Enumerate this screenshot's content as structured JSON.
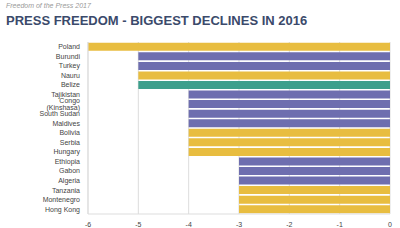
{
  "chart_data": {
    "type": "bar",
    "orientation": "horizontal",
    "title": "PRESS FREEDOM - BIGGEST DECLINES IN 2016",
    "subtitle": "Freedom of the Press 2017",
    "categories": [
      "Poland",
      "Burundi",
      "Turkey",
      "Nauru",
      "Belize",
      "Tajikistan",
      "Congo (Kinshasa)",
      "South Sudan",
      "Maldives",
      "Bolivia",
      "Serbia",
      "Hungary",
      "Ethiopia",
      "Gabon",
      "Algeria",
      "Tanzania",
      "Montenegro",
      "Hong Kong"
    ],
    "values": [
      -6,
      -5,
      -5,
      -5,
      -5,
      -4,
      -4,
      -4,
      -4,
      -4,
      -4,
      -4,
      -3,
      -3,
      -3,
      -3,
      -3,
      -3
    ],
    "colors": [
      "#e8bd40",
      "#6e6eaf",
      "#6e6eaf",
      "#e8bd40",
      "#3d9f8c",
      "#6e6eaf",
      "#6e6eaf",
      "#6e6eaf",
      "#6e6eaf",
      "#e8bd40",
      "#e8bd40",
      "#e8bd40",
      "#6e6eaf",
      "#6e6eaf",
      "#6e6eaf",
      "#e8bd40",
      "#e8bd40",
      "#e8bd40"
    ],
    "xlim": [
      -6,
      0
    ],
    "xticks": [
      -6,
      -5,
      -4,
      -3,
      -2,
      -1,
      0
    ],
    "grid": true
  }
}
